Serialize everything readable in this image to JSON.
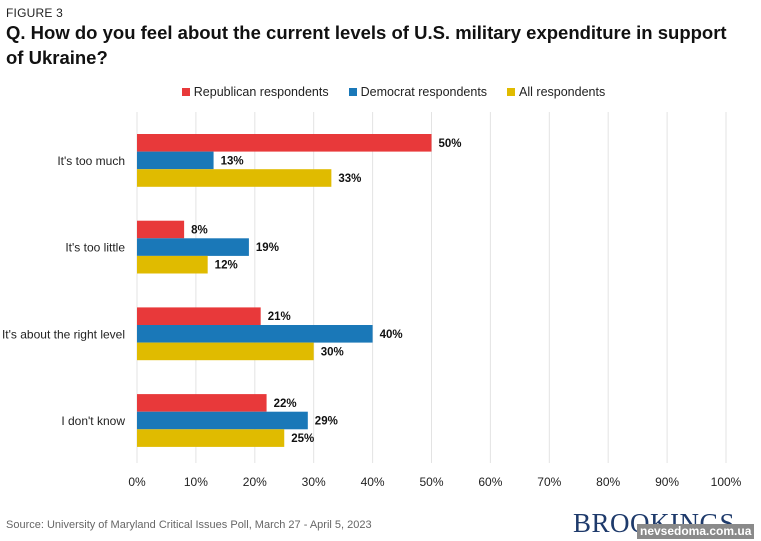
{
  "figure_label": "FIGURE 3",
  "source_text": "Source: University of Maryland Critical Issues Poll, March 27 - April 5, 2023",
  "brand": "BROOKINGS",
  "watermark": "nevsedoma.com.ua",
  "legend": [
    {
      "name": "Republican respondents",
      "color": "#e8393a"
    },
    {
      "name": "Democrat respondents",
      "color": "#1a78b8"
    },
    {
      "name": "All respondents",
      "color": "#e0bb00"
    }
  ],
  "chart_data": {
    "type": "bar",
    "orientation": "horizontal",
    "title": "Q. How do you feel about the current levels of U.S. military expenditure in support of Ukraine?",
    "categories": [
      "It's too much",
      "It's too little",
      "It's about the right level",
      "I don't know"
    ],
    "series": [
      {
        "name": "Republican respondents",
        "color": "#e8393a",
        "values": [
          50,
          8,
          21,
          22
        ]
      },
      {
        "name": "Democrat respondents",
        "color": "#1a78b8",
        "values": [
          13,
          19,
          40,
          29
        ]
      },
      {
        "name": "All respondents",
        "color": "#e0bb00",
        "values": [
          33,
          12,
          30,
          25
        ]
      }
    ],
    "value_suffix": "%",
    "xlabel": "",
    "ylabel": "",
    "xlim": [
      0,
      100
    ],
    "xticks": [
      0,
      10,
      20,
      30,
      40,
      50,
      60,
      70,
      80,
      90,
      100
    ],
    "xtick_labels": [
      "0%",
      "10%",
      "20%",
      "30%",
      "40%",
      "50%",
      "60%",
      "70%",
      "80%",
      "90%",
      "100%"
    ],
    "grid": true,
    "legend_position": "top-center",
    "data_labels": true
  }
}
